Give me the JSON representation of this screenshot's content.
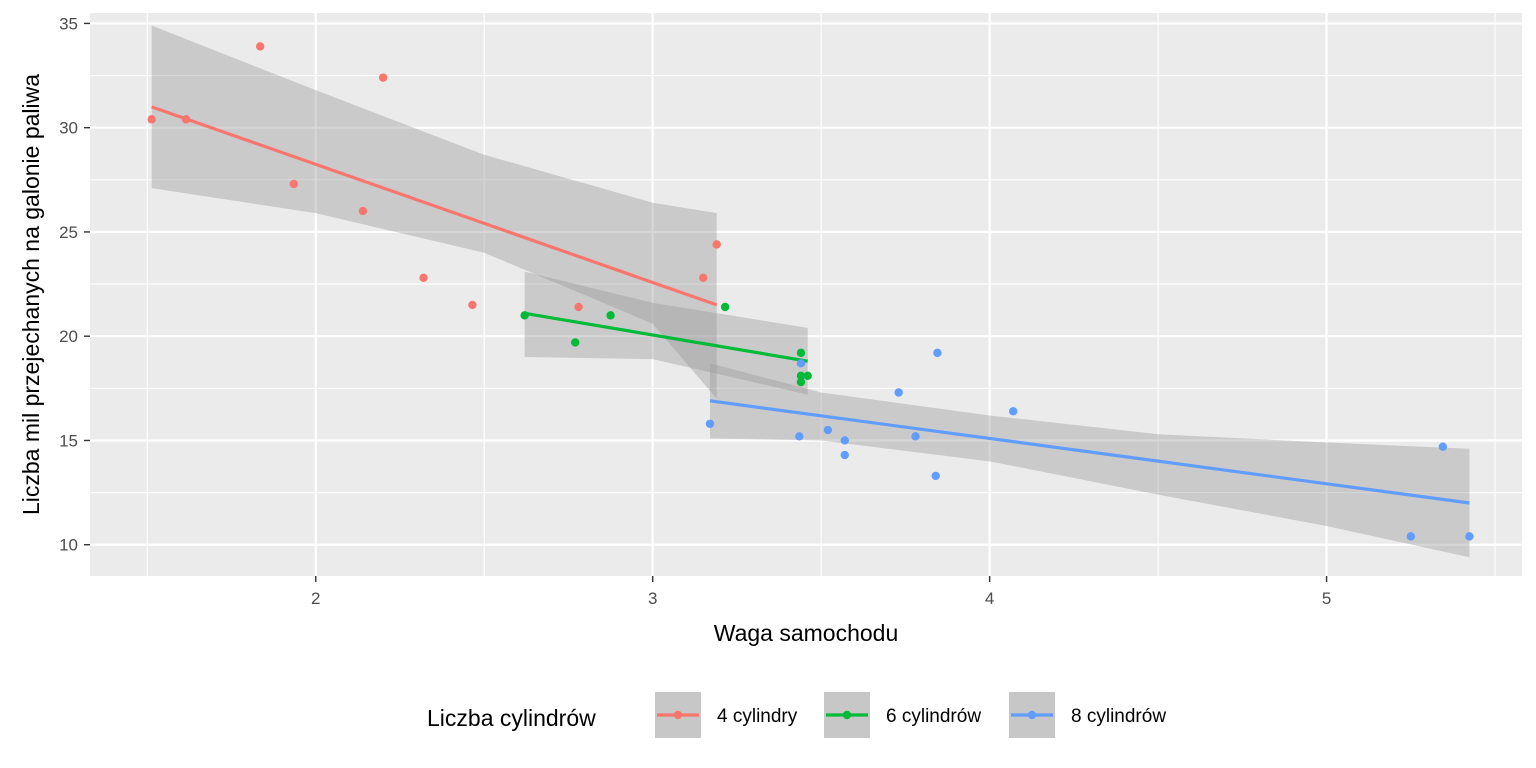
{
  "chart_data": {
    "type": "scatter",
    "title": "",
    "xlabel": "Waga samochodu",
    "ylabel": "Liczba mil przejechanych na galonie paliwa",
    "xlim": [
      1.33,
      5.58
    ],
    "ylim": [
      8.5,
      35.5
    ],
    "x_ticks": [
      "2",
      "3",
      "4",
      "5"
    ],
    "y_ticks": [
      "10",
      "15",
      "20",
      "25",
      "30",
      "35"
    ],
    "grid": true,
    "legend_position": "bottom",
    "legend_title": "Liczba cylindrów",
    "series": [
      {
        "name": "4 cylindry",
        "color": "#F8766D",
        "points": [
          [
            2.32,
            22.8
          ],
          [
            3.19,
            24.4
          ],
          [
            3.15,
            22.8
          ],
          [
            2.2,
            32.4
          ],
          [
            1.615,
            30.4
          ],
          [
            1.835,
            33.9
          ],
          [
            2.465,
            21.5
          ],
          [
            1.935,
            27.3
          ],
          [
            2.14,
            26.0
          ],
          [
            1.513,
            30.4
          ],
          [
            2.78,
            21.4
          ]
        ],
        "fit": [
          [
            1.513,
            31.0
          ],
          [
            3.19,
            21.5
          ]
        ],
        "band_upper": [
          [
            1.513,
            34.9
          ],
          [
            2.0,
            31.8
          ],
          [
            2.5,
            28.7
          ],
          [
            3.0,
            26.4
          ],
          [
            3.19,
            25.9
          ]
        ],
        "band_lower": [
          [
            1.513,
            27.1
          ],
          [
            2.0,
            25.9
          ],
          [
            2.5,
            24.0
          ],
          [
            3.0,
            20.6
          ],
          [
            3.19,
            17.0
          ]
        ]
      },
      {
        "name": "6 cylindrów",
        "color": "#00BA38",
        "points": [
          [
            2.62,
            21.0
          ],
          [
            2.875,
            21.0
          ],
          [
            3.215,
            21.4
          ],
          [
            3.44,
            18.1
          ],
          [
            3.44,
            19.2
          ],
          [
            3.44,
            17.8
          ],
          [
            2.77,
            19.7
          ],
          [
            3.46,
            18.1
          ]
        ],
        "fit": [
          [
            2.62,
            21.1
          ],
          [
            3.46,
            18.8
          ]
        ],
        "band_upper": [
          [
            2.62,
            23.1
          ],
          [
            3.0,
            21.6
          ],
          [
            3.46,
            20.4
          ]
        ],
        "band_lower": [
          [
            2.62,
            19.0
          ],
          [
            3.0,
            18.9
          ],
          [
            3.46,
            17.2
          ]
        ]
      },
      {
        "name": "8 cylindrów",
        "color": "#619CFF",
        "points": [
          [
            3.44,
            18.7
          ],
          [
            3.57,
            14.3
          ],
          [
            4.07,
            16.4
          ],
          [
            3.73,
            17.3
          ],
          [
            3.78,
            15.2
          ],
          [
            5.25,
            10.4
          ],
          [
            5.424,
            10.4
          ],
          [
            5.345,
            14.7
          ],
          [
            3.52,
            15.5
          ],
          [
            3.435,
            15.2
          ],
          [
            3.84,
            13.3
          ],
          [
            3.845,
            19.2
          ],
          [
            3.17,
            15.8
          ],
          [
            3.57,
            15.0
          ]
        ],
        "fit": [
          [
            3.17,
            16.9
          ],
          [
            5.424,
            12.0
          ]
        ],
        "band_upper": [
          [
            3.17,
            18.7
          ],
          [
            3.5,
            17.3
          ],
          [
            4.0,
            16.2
          ],
          [
            4.5,
            15.3
          ],
          [
            5.0,
            14.9
          ],
          [
            5.424,
            14.6
          ]
        ],
        "band_lower": [
          [
            3.17,
            15.1
          ],
          [
            3.5,
            15.0
          ],
          [
            4.0,
            14.0
          ],
          [
            4.5,
            12.4
          ],
          [
            5.0,
            10.9
          ],
          [
            5.424,
            9.4
          ]
        ]
      }
    ]
  }
}
